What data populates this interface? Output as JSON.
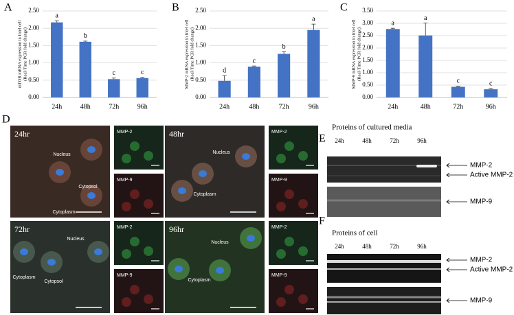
{
  "chart_data": [
    {
      "type": "bar",
      "label": "A",
      "ylabel": [
        "mTOR mRNA expression in Intel cell",
        "(Real-Time PCR fold change)"
      ],
      "categories": [
        "24h",
        "48h",
        "72h",
        "96h"
      ],
      "values": [
        2.17,
        1.61,
        0.53,
        0.56
      ],
      "errors": [
        0.05,
        0.02,
        0.03,
        0.02
      ],
      "annotations": [
        "a",
        "b",
        "c",
        "c"
      ],
      "color": "#4472c4",
      "grid": true,
      "ylim": [
        0,
        2.5
      ],
      "yticks": [
        {
          "value": 0,
          "label": "0.00"
        },
        {
          "value": 0.5,
          "label": "0.50"
        },
        {
          "value": 1,
          "label": "1.00"
        },
        {
          "value": 1.5,
          "label": "1.50"
        },
        {
          "value": 2,
          "label": "2.00"
        },
        {
          "value": 2.5,
          "label": "2.50"
        }
      ]
    },
    {
      "type": "bar",
      "label": "B",
      "ylabel": [
        "MMP-2 mRNA expression in Intel cell",
        "(Real-Time PCR fold change)"
      ],
      "categories": [
        "24h",
        "48h",
        "72h",
        "96h"
      ],
      "values": [
        0.48,
        0.89,
        1.26,
        1.95
      ],
      "errors": [
        0.15,
        0.02,
        0.06,
        0.17
      ],
      "annotations": [
        "d",
        "c",
        "b",
        "a"
      ],
      "color": "#4472c4",
      "grid": true,
      "ylim": [
        0,
        2.5
      ],
      "yticks": [
        {
          "value": 0,
          "label": "0.00"
        },
        {
          "value": 0.5,
          "label": "0.50"
        },
        {
          "value": 1,
          "label": "1.00"
        },
        {
          "value": 1.5,
          "label": "1.50"
        },
        {
          "value": 2,
          "label": "2.00"
        },
        {
          "value": 2.5,
          "label": "2.50"
        }
      ]
    },
    {
      "type": "bar",
      "label": "C",
      "ylabel": [
        "MMP-9 mRNA expression in Intel cell",
        "(Real-Time PCR fold change)"
      ],
      "categories": [
        "24h",
        "48h",
        "72h",
        "96h"
      ],
      "values": [
        2.77,
        2.51,
        0.43,
        0.33
      ],
      "errors": [
        0.03,
        0.5,
        0.03,
        0.03
      ],
      "annotations": [
        "a",
        "a",
        "c",
        "c"
      ],
      "color": "#4472c4",
      "grid": true,
      "ylim": [
        0,
        3.5
      ],
      "yticks": [
        {
          "value": 0,
          "label": "0.00"
        },
        {
          "value": 0.5,
          "label": "0.50"
        },
        {
          "value": 1,
          "label": "1.00"
        },
        {
          "value": 1.5,
          "label": "1.50"
        },
        {
          "value": 2,
          "label": "2.00"
        },
        {
          "value": 2.5,
          "label": "2.50"
        },
        {
          "value": 3,
          "label": "3.00"
        },
        {
          "value": 3.5,
          "label": "3.50"
        }
      ]
    }
  ],
  "panel_d": {
    "label": "D",
    "images": [
      {
        "time": "24hr",
        "labels": [
          "Nucleus",
          "Cytopsol",
          "Cytoplasm"
        ],
        "insets": [
          "MMP-2",
          "MMP-9"
        ]
      },
      {
        "time": "48hr",
        "labels": [
          "Nucleus",
          "Cytoplasm"
        ],
        "insets": [
          "MMP-2",
          "MMP-9"
        ]
      },
      {
        "time": "72hr",
        "labels": [
          "Nucleus",
          "Cytoplasm",
          "Cytopsol"
        ],
        "insets": [
          "MMP-2",
          "MMP-9"
        ]
      },
      {
        "time": "96hr",
        "labels": [
          "Nucleus",
          "Cytoplasm"
        ],
        "insets": [
          "MMP-2",
          "MMP-9"
        ]
      }
    ]
  },
  "panel_e": {
    "label": "E",
    "title": "Proteins of cultured media",
    "lanes": [
      "24h",
      "48h",
      "72h",
      "96h"
    ],
    "bands": [
      "MMP-2",
      "Active MMP-2",
      "MMP-9"
    ]
  },
  "panel_f": {
    "label": "F",
    "title": "Proteins of cell",
    "lanes": [
      "24h",
      "48h",
      "72h",
      "96h"
    ],
    "bands": [
      "MMP-2",
      "Active MMP-2",
      "MMP-9"
    ]
  }
}
